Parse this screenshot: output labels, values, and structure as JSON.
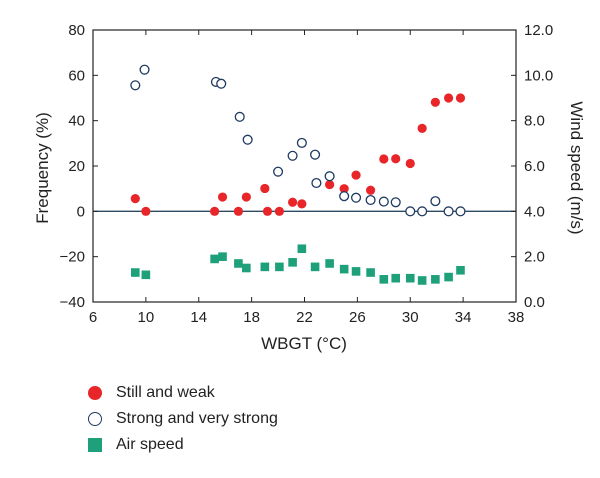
{
  "chart_data": {
    "type": "scatter",
    "title": "",
    "xlabel": "WBGT (°C)",
    "ylabel": "Frequency (%)",
    "y2label": "Wind speed (m/s)",
    "xlim": [
      6,
      38
    ],
    "ylim": [
      -40,
      80
    ],
    "y2lim": [
      0.0,
      12.0
    ],
    "xticks": [
      "6",
      "10",
      "14",
      "18",
      "22",
      "26",
      "30",
      "34",
      "38"
    ],
    "yticks": [
      "80",
      "60",
      "40",
      "20",
      "0",
      "−20",
      "−40"
    ],
    "y2ticks": [
      "12.0",
      "10.0",
      "8.0",
      "6.0",
      "4.0",
      "2.0",
      "0.0"
    ],
    "zero_line": true,
    "grid": false,
    "legend_position": "bottom-left",
    "series": [
      {
        "name": "Still and weak",
        "axis": "left",
        "marker": "filled-circle",
        "color": "#e8262a",
        "x": [
          9.2,
          10.0,
          15.2,
          15.8,
          17.0,
          17.6,
          19.0,
          19.2,
          20.1,
          21.1,
          21.8,
          23.9,
          25.0,
          25.9,
          27.0,
          28.0,
          28.9,
          30.0,
          30.9,
          31.9,
          32.9,
          33.8
        ],
        "y": [
          5.6,
          0,
          0,
          6.3,
          0,
          6.3,
          10.1,
          0,
          0,
          4.0,
          3.3,
          11.8,
          10.0,
          16.0,
          9.3,
          23.1,
          23.2,
          21.1,
          36.6,
          48.1,
          50.0,
          50.0
        ]
      },
      {
        "name": "Strong and very strong",
        "axis": "left",
        "marker": "open-circle",
        "color": "#1f3a5f",
        "x": [
          9.2,
          9.9,
          15.3,
          15.7,
          17.1,
          17.7,
          20.0,
          21.1,
          21.8,
          22.8,
          22.9,
          23.9,
          25.0,
          25.9,
          27.0,
          28.0,
          28.9,
          30.0,
          30.9,
          31.9,
          32.9,
          33.8
        ],
        "y": [
          55.6,
          62.5,
          57.1,
          56.3,
          41.7,
          31.6,
          17.5,
          24.5,
          30.2,
          25.0,
          12.5,
          15.5,
          6.7,
          6.0,
          5.0,
          4.3,
          4.0,
          0,
          0,
          4.5,
          0,
          0
        ]
      },
      {
        "name": "Air speed",
        "axis": "right",
        "marker": "filled-square",
        "color": "#1ea07a",
        "x": [
          9.2,
          10.0,
          15.2,
          15.8,
          17.0,
          17.6,
          19.0,
          20.1,
          21.1,
          21.8,
          22.8,
          23.9,
          25.0,
          25.9,
          27.0,
          28.0,
          28.9,
          30.0,
          30.9,
          31.9,
          32.9,
          33.8
        ],
        "y": [
          1.3,
          1.2,
          1.9,
          2.0,
          1.7,
          1.5,
          1.55,
          1.55,
          1.75,
          2.35,
          1.55,
          1.7,
          1.45,
          1.35,
          1.3,
          1.0,
          1.05,
          1.05,
          0.95,
          1.0,
          1.1,
          1.4
        ]
      }
    ]
  }
}
